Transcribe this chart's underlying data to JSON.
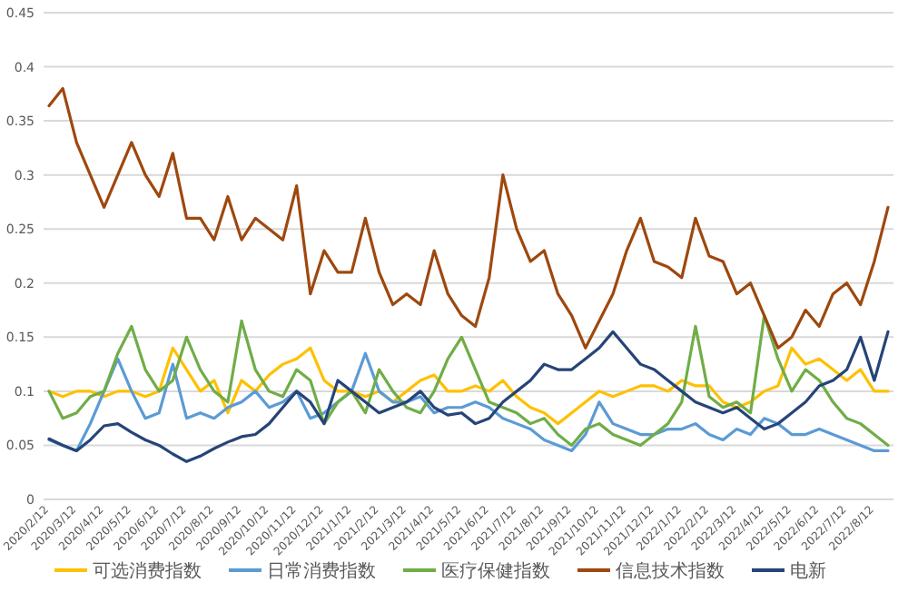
{
  "chart_data": {
    "type": "line",
    "categories": [
      "2020/2/12",
      null,
      "2020/3/12",
      null,
      "2020/4/12",
      null,
      "2020/5/12",
      null,
      "2020/6/12",
      null,
      "2020/7/12",
      null,
      "2020/8/12",
      null,
      "2020/9/12",
      null,
      "2020/10/12",
      null,
      "2020/11/12",
      null,
      "2020/12/12",
      null,
      "2021/1/12",
      null,
      "2021/2/12",
      null,
      "2021/3/12",
      null,
      "2021/4/12",
      null,
      "2021/5/12",
      null,
      "2021/6/12",
      null,
      "2021/7/12",
      null,
      "2021/8/12",
      null,
      "2021/9/12",
      null,
      "2021/10/12",
      null,
      "2021/11/12",
      null,
      "2021/12/12",
      null,
      "2022/1/12",
      null,
      "2022/2/12",
      null,
      "2022/3/12",
      null,
      "2022/4/12",
      null,
      "2022/5/12",
      null,
      "2022/6/12",
      null,
      "2022/7/12",
      null,
      "2022/8/12",
      null
    ],
    "series": [
      {
        "name": "可选消费指数",
        "color": "#ffc000",
        "values": [
          0.1,
          0.095,
          0.1,
          0.1,
          0.095,
          0.1,
          0.1,
          0.095,
          0.1,
          0.14,
          0.12,
          0.1,
          0.11,
          0.08,
          0.11,
          0.1,
          0.115,
          0.125,
          0.13,
          0.14,
          0.11,
          0.1,
          0.1,
          0.095,
          0.1,
          0.09,
          0.1,
          0.11,
          0.115,
          0.1,
          0.1,
          0.105,
          0.1,
          0.11,
          0.095,
          0.085,
          0.08,
          0.07,
          0.08,
          0.09,
          0.1,
          0.095,
          0.1,
          0.105,
          0.105,
          0.1,
          0.11,
          0.105,
          0.105,
          0.09,
          0.085,
          0.09,
          0.1,
          0.105,
          0.14,
          0.125,
          0.13,
          0.12,
          0.11,
          0.12,
          0.1,
          0.1
        ]
      },
      {
        "name": "日常消费指数",
        "color": "#5b9bd5",
        "values": [
          0.055,
          0.05,
          0.045,
          0.07,
          0.1,
          0.13,
          0.1,
          0.075,
          0.08,
          0.125,
          0.075,
          0.08,
          0.075,
          0.085,
          0.09,
          0.1,
          0.085,
          0.09,
          0.1,
          0.075,
          0.08,
          0.09,
          0.1,
          0.135,
          0.1,
          0.09,
          0.09,
          0.095,
          0.08,
          0.085,
          0.085,
          0.09,
          0.085,
          0.075,
          0.07,
          0.065,
          0.055,
          0.05,
          0.045,
          0.06,
          0.09,
          0.07,
          0.065,
          0.06,
          0.06,
          0.065,
          0.065,
          0.07,
          0.06,
          0.055,
          0.065,
          0.06,
          0.075,
          0.07,
          0.06,
          0.06,
          0.065,
          0.06,
          0.055,
          0.05,
          0.045,
          0.045
        ]
      },
      {
        "name": "医疗保健指数",
        "color": "#70ad47",
        "values": [
          0.1,
          0.075,
          0.08,
          0.095,
          0.1,
          0.135,
          0.16,
          0.12,
          0.1,
          0.11,
          0.15,
          0.12,
          0.1,
          0.09,
          0.165,
          0.12,
          0.1,
          0.095,
          0.12,
          0.11,
          0.07,
          0.09,
          0.1,
          0.08,
          0.12,
          0.1,
          0.085,
          0.08,
          0.1,
          0.13,
          0.15,
          0.12,
          0.09,
          0.085,
          0.08,
          0.07,
          0.075,
          0.06,
          0.05,
          0.065,
          0.07,
          0.06,
          0.055,
          0.05,
          0.06,
          0.07,
          0.09,
          0.16,
          0.095,
          0.085,
          0.09,
          0.08,
          0.17,
          0.13,
          0.1,
          0.12,
          0.11,
          0.09,
          0.075,
          0.07,
          0.06,
          0.05
        ]
      },
      {
        "name": "信息技术指数",
        "color": "#9e480e",
        "values": [
          0.364,
          0.38,
          0.33,
          0.3,
          0.27,
          0.3,
          0.33,
          0.3,
          0.28,
          0.32,
          0.26,
          0.26,
          0.24,
          0.28,
          0.24,
          0.26,
          0.25,
          0.24,
          0.29,
          0.19,
          0.23,
          0.21,
          0.21,
          0.26,
          0.21,
          0.18,
          0.19,
          0.18,
          0.23,
          0.19,
          0.17,
          0.16,
          0.205,
          0.3,
          0.25,
          0.22,
          0.23,
          0.19,
          0.17,
          0.14,
          0.165,
          0.19,
          0.23,
          0.26,
          0.22,
          0.215,
          0.205,
          0.26,
          0.225,
          0.22,
          0.19,
          0.2,
          0.17,
          0.14,
          0.15,
          0.175,
          0.16,
          0.19,
          0.2,
          0.18,
          0.22,
          0.27
        ]
      },
      {
        "name": "电新",
        "color": "#264478",
        "values": [
          0.056,
          0.05,
          0.045,
          0.055,
          0.068,
          0.07,
          0.062,
          0.055,
          0.05,
          0.042,
          0.035,
          0.04,
          0.047,
          0.053,
          0.058,
          0.06,
          0.07,
          0.085,
          0.1,
          0.09,
          0.07,
          0.11,
          0.1,
          0.09,
          0.08,
          0.085,
          0.09,
          0.1,
          0.085,
          0.078,
          0.08,
          0.07,
          0.075,
          0.09,
          0.1,
          0.11,
          0.125,
          0.12,
          0.12,
          0.13,
          0.14,
          0.155,
          0.14,
          0.125,
          0.12,
          0.11,
          0.1,
          0.09,
          0.085,
          0.08,
          0.085,
          0.075,
          0.065,
          0.07,
          0.08,
          0.09,
          0.105,
          0.11,
          0.12,
          0.15,
          0.11,
          0.155
        ]
      }
    ],
    "ylim": [
      0,
      0.45
    ],
    "yticks": [
      0,
      0.05,
      0.1,
      0.15,
      0.2,
      0.25,
      0.3,
      0.35,
      0.4,
      0.45
    ],
    "grid": "y",
    "legend": "bottom",
    "marker": "none",
    "line_style": "solid"
  }
}
